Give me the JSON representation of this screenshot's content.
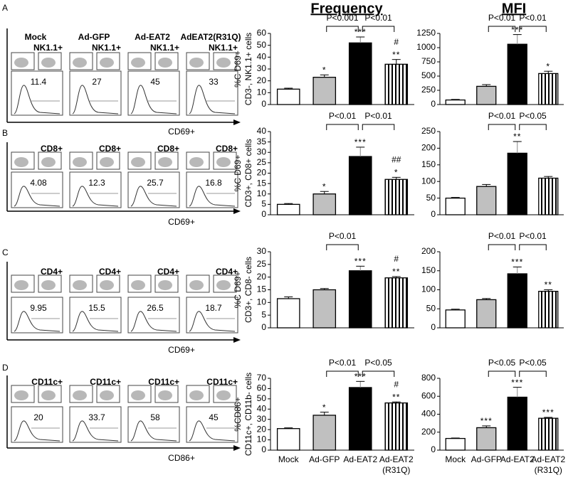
{
  "headers": [
    "Frequency",
    "MFI"
  ],
  "flow_cytometry": {
    "columns": [
      "Mock",
      "Ad-GFP",
      "Ad-EAT2",
      "AdEAT2(R31Q)"
    ],
    "rows": [
      {
        "letter": "A",
        "gate": "NK1.1+",
        "printed_values": [
          "11.4",
          "27",
          "45",
          "33"
        ],
        "axis_label": "CD69+"
      },
      {
        "letter": "B",
        "gate": "CD8+",
        "printed_values": [
          "4.08",
          "12.3",
          "25.7",
          "16.8"
        ],
        "axis_label": "CD69+"
      },
      {
        "letter": "C",
        "gate": "CD4+",
        "printed_values": [
          "9.95",
          "15.5",
          "26.5",
          "18.7"
        ],
        "axis_label": "CD69+"
      },
      {
        "letter": "D",
        "gate": "CD11c+",
        "printed_values": [
          "20",
          "33.7",
          "58",
          "45"
        ],
        "axis_label": "CD86+"
      }
    ]
  },
  "chart_data": [
    {
      "type": "bar",
      "ylabel": [
        "%C D69+",
        "CD3-, NK1.1+ cells"
      ],
      "values": [
        13,
        23,
        52,
        34
      ],
      "errors": [
        0.8,
        2,
        5,
        4
      ],
      "colors": [
        "#ffffff",
        "#c0c0c0",
        "#000000",
        "#ffffff"
      ],
      "hatch": [
        false,
        false,
        false,
        true
      ],
      "ylim": [
        0,
        60
      ],
      "yticks": [
        0,
        10,
        20,
        30,
        40,
        50,
        60
      ],
      "stars": [
        null,
        "*",
        "***",
        "**"
      ],
      "hashes": [
        null,
        null,
        null,
        "#"
      ],
      "comparisons": [
        "P<0.001",
        "P<0.01"
      ]
    },
    {
      "type": "bar",
      "values": [
        80,
        320,
        1060,
        545
      ],
      "errors": [
        10,
        30,
        170,
        40
      ],
      "colors": [
        "#ffffff",
        "#c0c0c0",
        "#000000",
        "#ffffff"
      ],
      "hatch": [
        false,
        false,
        false,
        true
      ],
      "ylim": [
        0,
        1250
      ],
      "yticks": [
        0,
        250,
        500,
        750,
        1000,
        1250
      ],
      "stars": [
        null,
        null,
        "***",
        "*"
      ],
      "hashes": [
        null,
        null,
        null,
        null
      ],
      "comparisons": [
        "P<0.01",
        "P<0.01"
      ]
    },
    {
      "type": "bar",
      "ylabel": [
        "%C D69+",
        "CD3+, CD8+ cells"
      ],
      "values": [
        5,
        10,
        28,
        17
      ],
      "errors": [
        0.4,
        1.2,
        4.5,
        1
      ],
      "colors": [
        "#ffffff",
        "#c0c0c0",
        "#000000",
        "#ffffff"
      ],
      "hatch": [
        false,
        false,
        false,
        true
      ],
      "ylim": [
        0,
        40
      ],
      "yticks": [
        0,
        5,
        10,
        15,
        20,
        25,
        30,
        35,
        40
      ],
      "stars": [
        null,
        "*",
        "***",
        "*"
      ],
      "hashes": [
        null,
        null,
        null,
        "##"
      ],
      "comparisons": [
        "P<0.01",
        "P<0.01"
      ]
    },
    {
      "type": "bar",
      "values": [
        50,
        85,
        185,
        110
      ],
      "errors": [
        2,
        6,
        35,
        5
      ],
      "colors": [
        "#ffffff",
        "#c0c0c0",
        "#000000",
        "#ffffff"
      ],
      "hatch": [
        false,
        false,
        false,
        true
      ],
      "ylim": [
        0,
        250
      ],
      "yticks": [
        0,
        50,
        100,
        150,
        200,
        250
      ],
      "stars": [
        null,
        null,
        "**",
        null
      ],
      "hashes": [
        null,
        null,
        null,
        null
      ],
      "comparisons": [
        "P<0.01",
        "P<0.05"
      ]
    },
    {
      "type": "bar",
      "ylabel": [
        "%C D69+",
        "CD3+, CD8- cells"
      ],
      "values": [
        11.5,
        15,
        22.5,
        19.7
      ],
      "errors": [
        0.7,
        0.5,
        1.8,
        0.5
      ],
      "colors": [
        "#ffffff",
        "#c0c0c0",
        "#000000",
        "#ffffff"
      ],
      "hatch": [
        false,
        false,
        false,
        true
      ],
      "ylim": [
        0,
        30
      ],
      "yticks": [
        0,
        5,
        10,
        15,
        20,
        25,
        30
      ],
      "stars": [
        null,
        null,
        "***",
        "**"
      ],
      "hashes": [
        null,
        null,
        null,
        "#"
      ],
      "comparisons": [
        "P<0.01"
      ]
    },
    {
      "type": "bar",
      "values": [
        47,
        74,
        142,
        96
      ],
      "errors": [
        2,
        3,
        18,
        4
      ],
      "colors": [
        "#ffffff",
        "#c0c0c0",
        "#000000",
        "#ffffff"
      ],
      "hatch": [
        false,
        false,
        false,
        true
      ],
      "ylim": [
        0,
        200
      ],
      "yticks": [
        0,
        50,
        100,
        150,
        200
      ],
      "stars": [
        null,
        null,
        "***",
        "**"
      ],
      "hashes": [
        null,
        null,
        null,
        null
      ],
      "comparisons": [
        "P<0.01",
        "P<0.01"
      ]
    },
    {
      "type": "bar",
      "ylabel": [
        "%CD86+",
        "CD11c+, CD11b- cells"
      ],
      "categories": [
        "Mock",
        "Ad-GFP",
        "Ad-EAT2",
        "Ad-EAT2 (R31Q)"
      ],
      "values": [
        21,
        34,
        61,
        46
      ],
      "errors": [
        0.7,
        3,
        6,
        1
      ],
      "colors": [
        "#ffffff",
        "#c0c0c0",
        "#000000",
        "#ffffff"
      ],
      "hatch": [
        false,
        false,
        false,
        true
      ],
      "ylim": [
        0,
        70
      ],
      "yticks": [
        0,
        10,
        20,
        30,
        40,
        50,
        60,
        70
      ],
      "stars": [
        null,
        "*",
        "***",
        "**"
      ],
      "hashes": [
        null,
        null,
        null,
        "#"
      ],
      "comparisons": [
        "P<0.01",
        "P<0.05"
      ]
    },
    {
      "type": "bar",
      "categories": [
        "Mock",
        "Ad-GFP",
        "Ad-EAT2",
        "Ad-EAT2 (R31Q)"
      ],
      "values": [
        130,
        250,
        590,
        355
      ],
      "errors": [
        5,
        20,
        110,
        10
      ],
      "colors": [
        "#ffffff",
        "#c0c0c0",
        "#000000",
        "#ffffff"
      ],
      "hatch": [
        false,
        false,
        false,
        true
      ],
      "ylim": [
        0,
        800
      ],
      "yticks": [
        0,
        200,
        400,
        600,
        800
      ],
      "stars": [
        null,
        "***",
        "***",
        "***"
      ],
      "hashes": [
        null,
        null,
        null,
        null
      ],
      "comparisons": [
        "P<0.05",
        "P<0.05"
      ]
    }
  ]
}
